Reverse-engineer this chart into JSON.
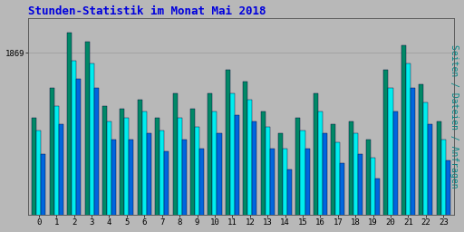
{
  "title": "Stunden-Statistik im Monat Mai 2018",
  "title_color": "#0000dd",
  "title_fontsize": 9,
  "ylabel_right": "Seiten / Dateien / Anfragen",
  "ylabel_right_color": "#008888",
  "ylabel_right_fontsize": 7,
  "background_color": "#b8b8b8",
  "plot_bg_color": "#b8b8b8",
  "bar_border_color": "#000033",
  "ytick_label": "1869",
  "hours": [
    0,
    1,
    2,
    3,
    4,
    5,
    6,
    7,
    8,
    9,
    10,
    11,
    12,
    13,
    14,
    15,
    16,
    17,
    18,
    19,
    20,
    21,
    22,
    23
  ],
  "series1_color": "#008866",
  "series2_color": "#00eeee",
  "series3_color": "#0066dd",
  "series1": [
    0.72,
    0.82,
    1.0,
    0.97,
    0.76,
    0.75,
    0.78,
    0.72,
    0.8,
    0.75,
    0.8,
    0.88,
    0.84,
    0.74,
    0.67,
    0.72,
    0.8,
    0.7,
    0.71,
    0.65,
    0.88,
    0.96,
    0.83,
    0.71
  ],
  "series2": [
    0.68,
    0.76,
    0.91,
    0.9,
    0.71,
    0.72,
    0.74,
    0.68,
    0.72,
    0.69,
    0.74,
    0.8,
    0.78,
    0.69,
    0.62,
    0.68,
    0.74,
    0.64,
    0.67,
    0.59,
    0.82,
    0.9,
    0.77,
    0.65
  ],
  "series3": [
    0.6,
    0.7,
    0.85,
    0.82,
    0.65,
    0.65,
    0.67,
    0.61,
    0.65,
    0.62,
    0.67,
    0.73,
    0.71,
    0.62,
    0.55,
    0.62,
    0.67,
    0.57,
    0.6,
    0.52,
    0.74,
    0.82,
    0.7,
    0.58
  ],
  "ymax": 1.05,
  "ymin": 0.4
}
